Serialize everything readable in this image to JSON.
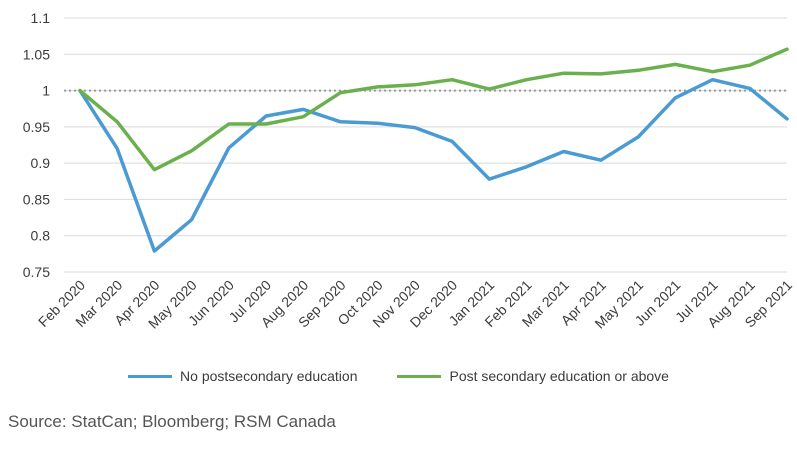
{
  "chart_data": {
    "type": "line",
    "categories": [
      "Feb 2020",
      "Mar 2020",
      "Apr 2020",
      "May 2020",
      "Jun 2020",
      "Jul 2020",
      "Aug 2020",
      "Sep 2020",
      "Oct 2020",
      "Nov 2020",
      "Dec 2020",
      "Jan 2021",
      "Feb 2021",
      "Mar 2021",
      "Apr 2021",
      "May 2021",
      "Jun 2021",
      "Jul 2021",
      "Aug 2021",
      "Sep 2021"
    ],
    "series": [
      {
        "name": "No postsecondary education",
        "color": "#4a9ad4",
        "values": [
          1.0,
          0.92,
          0.779,
          0.822,
          0.921,
          0.965,
          0.974,
          0.957,
          0.955,
          0.949,
          0.93,
          0.878,
          0.895,
          0.916,
          0.904,
          0.936,
          0.99,
          1.015,
          1.003,
          0.961
        ]
      },
      {
        "name": "Post secondary education or above",
        "color": "#6ab04c",
        "values": [
          1.0,
          0.957,
          0.891,
          0.917,
          0.954,
          0.954,
          0.964,
          0.997,
          1.005,
          1.008,
          1.015,
          1.002,
          1.015,
          1.024,
          1.023,
          1.028,
          1.036,
          1.026,
          1.035,
          1.057
        ]
      }
    ],
    "yticks": [
      "0.75",
      "0.8",
      "0.85",
      "0.9",
      "0.95",
      "1",
      "1.05",
      "1.1"
    ],
    "ylim": [
      0.75,
      1.1
    ],
    "reference_line": 1,
    "grid": "horizontal",
    "legend_position": "bottom"
  },
  "source": "Source: StatCan; Bloomberg; RSM Canada"
}
